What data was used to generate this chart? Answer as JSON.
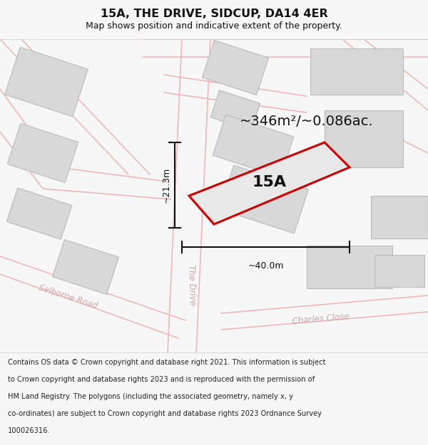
{
  "title": "15A, THE DRIVE, SIDCUP, DA14 4ER",
  "subtitle": "Map shows position and indicative extent of the property.",
  "area_text": "~346m²/~0.086ac.",
  "label_15a": "15A",
  "dim_width": "~40.0m",
  "dim_height": "~21.3m",
  "footer_lines": [
    "Contains OS data © Crown copyright and database right 2021. This information is subject",
    "to Crown copyright and database rights 2023 and is reproduced with the permission of",
    "HM Land Registry. The polygons (including the associated geometry, namely x, y",
    "co-ordinates) are subject to Crown copyright and database rights 2023 Ordnance Survey",
    "100026316."
  ],
  "bg_color": "#f7f7f7",
  "map_bg": "#ffffff",
  "road_color": "#f0b8b8",
  "building_fill": "#d8d8d8",
  "building_edge": "#bbbbbb",
  "property_fill": "#e8e8e8",
  "property_edge": "#cc0000",
  "title_color": "#111111",
  "road_label_color": "#c8a8a8",
  "footer_color": "#222222",
  "dim_color": "#111111"
}
